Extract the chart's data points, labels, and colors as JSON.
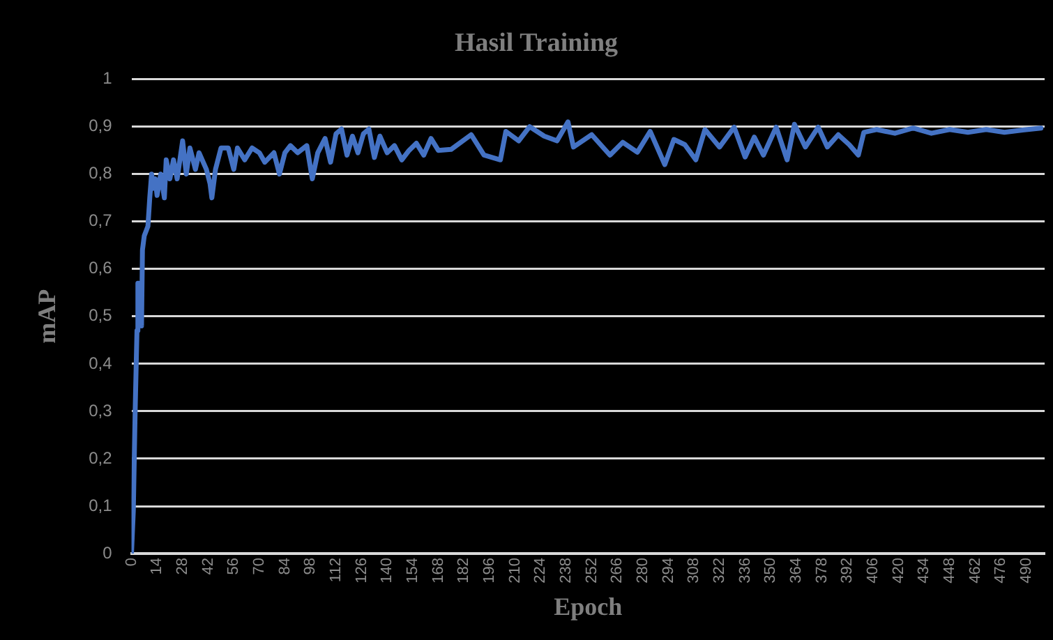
{
  "chart_data": {
    "type": "line",
    "title": "Hasil Training",
    "xlabel": "Epoch",
    "ylabel": "mAP",
    "x": [
      0,
      1,
      2,
      3,
      3.5,
      4,
      5,
      5.5,
      6,
      7,
      9,
      10,
      11,
      12,
      13,
      14,
      16,
      18,
      19,
      21,
      23,
      25,
      28,
      30,
      32,
      35,
      37,
      41,
      43,
      44,
      46,
      49,
      53,
      56,
      58,
      62,
      66,
      70,
      73,
      78,
      81,
      84,
      87,
      91,
      96,
      99,
      102,
      106,
      109,
      112,
      115,
      118,
      121,
      124,
      127,
      130,
      133,
      136,
      140,
      144,
      148,
      152,
      156,
      160,
      164,
      168,
      175,
      186,
      193,
      202,
      205,
      212,
      218,
      226,
      233,
      239,
      242,
      252,
      262,
      269,
      277,
      284,
      292,
      297,
      303,
      309,
      314,
      322,
      330,
      336,
      341,
      346,
      353,
      359,
      363,
      369,
      376,
      381,
      387,
      393,
      398,
      401,
      408,
      418,
      428,
      438,
      448,
      458,
      468,
      478,
      488,
      498
    ],
    "series": [
      {
        "color": "#4472c4",
        "values": [
          0,
          0.09,
          0.3,
          0.47,
          0.57,
          0.57,
          0.56,
          0.48,
          0.64,
          0.67,
          0.69,
          0.75,
          0.8,
          0.77,
          0.79,
          0.755,
          0.8,
          0.75,
          0.83,
          0.79,
          0.83,
          0.79,
          0.87,
          0.8,
          0.855,
          0.81,
          0.845,
          0.81,
          0.78,
          0.75,
          0.81,
          0.855,
          0.855,
          0.81,
          0.855,
          0.83,
          0.855,
          0.845,
          0.825,
          0.845,
          0.8,
          0.845,
          0.86,
          0.845,
          0.86,
          0.79,
          0.845,
          0.875,
          0.825,
          0.885,
          0.895,
          0.84,
          0.88,
          0.845,
          0.885,
          0.895,
          0.835,
          0.88,
          0.845,
          0.86,
          0.83,
          0.85,
          0.865,
          0.84,
          0.875,
          0.85,
          0.852,
          0.883,
          0.84,
          0.83,
          0.89,
          0.87,
          0.9,
          0.88,
          0.87,
          0.91,
          0.857,
          0.883,
          0.84,
          0.867,
          0.846,
          0.89,
          0.82,
          0.873,
          0.862,
          0.83,
          0.894,
          0.857,
          0.899,
          0.836,
          0.878,
          0.84,
          0.899,
          0.83,
          0.905,
          0.857,
          0.899,
          0.857,
          0.883,
          0.862,
          0.84,
          0.888,
          0.894,
          0.886,
          0.897,
          0.886,
          0.894,
          0.888,
          0.894,
          0.888,
          0.893,
          0.897
        ]
      }
    ],
    "xlim": [
      0,
      500
    ],
    "xticks": [
      0,
      14,
      28,
      42,
      56,
      70,
      84,
      98,
      112,
      126,
      140,
      154,
      168,
      182,
      196,
      210,
      224,
      238,
      252,
      266,
      280,
      294,
      308,
      322,
      336,
      350,
      364,
      378,
      392,
      406,
      420,
      434,
      448,
      462,
      476,
      490
    ],
    "ylim": [
      0,
      1
    ],
    "yticks": [
      0,
      {
        "value": 0.1,
        "label": "0,1"
      },
      {
        "value": 0.2,
        "label": "0,2"
      },
      {
        "value": 0.3,
        "label": "0,3"
      },
      {
        "value": 0.4,
        "label": "0,4"
      },
      {
        "value": 0.5,
        "label": "0,5"
      },
      {
        "value": 0.6,
        "label": "0,6"
      },
      {
        "value": 0.7,
        "label": "0,7"
      },
      {
        "value": 0.8,
        "label": "0,8"
      },
      {
        "value": 0.9,
        "label": "0,9"
      },
      1
    ],
    "grid": "y",
    "legend": false,
    "marker": "none",
    "line_style": "solid"
  }
}
